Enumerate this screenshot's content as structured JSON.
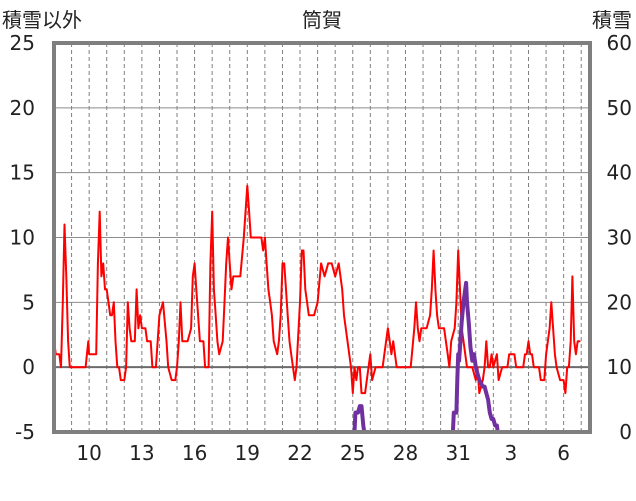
{
  "chart_data": {
    "type": "line",
    "title": "筒賀",
    "left_axis_label": "積雪以外",
    "right_axis_label": "積雪",
    "left_ylim": [
      -5,
      25
    ],
    "left_ticks": [
      "-5",
      "0",
      "5",
      "10",
      "15",
      "20",
      "25"
    ],
    "right_ylim": [
      0,
      60
    ],
    "right_ticks": [
      "0",
      "10",
      "20",
      "30",
      "40",
      "50",
      "60"
    ],
    "x_tick_labels": [
      "10",
      "13",
      "16",
      "19",
      "22",
      "25",
      "28",
      "31",
      "3",
      "6"
    ],
    "x_tick_days": [
      2,
      5,
      8,
      11,
      14,
      17,
      20,
      23,
      26,
      29
    ],
    "x_range_days": [
      0,
      30.5
    ],
    "grid": "vertical dashed daily lines, horizontal solid lines every 5",
    "series": [
      {
        "name": "",
        "axis": "left",
        "color": "#ff0000",
        "points": [
          [
            0,
            2
          ],
          [
            0.1,
            1
          ],
          [
            0.3,
            1
          ],
          [
            0.4,
            0
          ],
          [
            0.5,
            5
          ],
          [
            0.6,
            11
          ],
          [
            0.7,
            7
          ],
          [
            0.8,
            2
          ],
          [
            0.9,
            0
          ],
          [
            1.0,
            0
          ],
          [
            1.5,
            0
          ],
          [
            1.8,
            0
          ],
          [
            1.95,
            2
          ],
          [
            2.0,
            1
          ],
          [
            2.2,
            1
          ],
          [
            2.4,
            1
          ],
          [
            2.5,
            8
          ],
          [
            2.6,
            12
          ],
          [
            2.7,
            7
          ],
          [
            2.8,
            8
          ],
          [
            2.9,
            6
          ],
          [
            3.0,
            6
          ],
          [
            3.1,
            5
          ],
          [
            3.2,
            4
          ],
          [
            3.3,
            4
          ],
          [
            3.4,
            5
          ],
          [
            3.5,
            2
          ],
          [
            3.6,
            0
          ],
          [
            3.7,
            0
          ],
          [
            3.8,
            -1
          ],
          [
            4.0,
            -1
          ],
          [
            4.1,
            0
          ],
          [
            4.2,
            5
          ],
          [
            4.3,
            3
          ],
          [
            4.4,
            2
          ],
          [
            4.6,
            2
          ],
          [
            4.7,
            6
          ],
          [
            4.8,
            3
          ],
          [
            4.9,
            4
          ],
          [
            5.0,
            3
          ],
          [
            5.2,
            3
          ],
          [
            5.3,
            2
          ],
          [
            5.5,
            2
          ],
          [
            5.6,
            0
          ],
          [
            5.8,
            0
          ],
          [
            6.0,
            4
          ],
          [
            6.2,
            5
          ],
          [
            6.4,
            2
          ],
          [
            6.5,
            0
          ],
          [
            6.7,
            -1
          ],
          [
            6.9,
            -1
          ],
          [
            7.0,
            0
          ],
          [
            7.1,
            2
          ],
          [
            7.2,
            5
          ],
          [
            7.3,
            2
          ],
          [
            7.4,
            2
          ],
          [
            7.6,
            2
          ],
          [
            7.8,
            3
          ],
          [
            7.9,
            7
          ],
          [
            8.0,
            8
          ],
          [
            8.1,
            6
          ],
          [
            8.2,
            4
          ],
          [
            8.3,
            2
          ],
          [
            8.5,
            2
          ],
          [
            8.6,
            0
          ],
          [
            8.8,
            0
          ],
          [
            8.9,
            8
          ],
          [
            9.0,
            12
          ],
          [
            9.1,
            6
          ],
          [
            9.2,
            4
          ],
          [
            9.3,
            2
          ],
          [
            9.4,
            1
          ],
          [
            9.6,
            2
          ],
          [
            9.7,
            5
          ],
          [
            9.8,
            8
          ],
          [
            9.9,
            10
          ],
          [
            10.0,
            8
          ],
          [
            10.1,
            6
          ],
          [
            10.2,
            7
          ],
          [
            10.4,
            7
          ],
          [
            10.6,
            7
          ],
          [
            10.8,
            10
          ],
          [
            11.0,
            14
          ],
          [
            11.1,
            12
          ],
          [
            11.2,
            10
          ],
          [
            11.4,
            10
          ],
          [
            11.6,
            10
          ],
          [
            11.8,
            10
          ],
          [
            11.9,
            9
          ],
          [
            12.0,
            10
          ],
          [
            12.1,
            8
          ],
          [
            12.2,
            6
          ],
          [
            12.3,
            5
          ],
          [
            12.4,
            4
          ],
          [
            12.5,
            2
          ],
          [
            12.7,
            1
          ],
          [
            12.8,
            2
          ],
          [
            12.9,
            4
          ],
          [
            13.0,
            8
          ],
          [
            13.1,
            8
          ],
          [
            13.2,
            6
          ],
          [
            13.3,
            4
          ],
          [
            13.4,
            2
          ],
          [
            13.5,
            1
          ],
          [
            13.6,
            0
          ],
          [
            13.7,
            -1
          ],
          [
            13.8,
            0
          ],
          [
            14.0,
            5
          ],
          [
            14.1,
            9
          ],
          [
            14.2,
            9
          ],
          [
            14.3,
            6
          ],
          [
            14.4,
            5
          ],
          [
            14.5,
            4
          ],
          [
            14.6,
            4
          ],
          [
            14.8,
            4
          ],
          [
            15.0,
            5
          ],
          [
            15.2,
            8
          ],
          [
            15.4,
            7
          ],
          [
            15.6,
            8
          ],
          [
            15.8,
            8
          ],
          [
            16.0,
            7
          ],
          [
            16.2,
            8
          ],
          [
            16.4,
            6
          ],
          [
            16.5,
            4
          ],
          [
            16.7,
            2
          ],
          [
            16.9,
            0
          ],
          [
            17.0,
            -2
          ],
          [
            17.1,
            0
          ],
          [
            17.2,
            -1
          ],
          [
            17.3,
            0
          ],
          [
            17.4,
            0
          ],
          [
            17.5,
            -2
          ],
          [
            17.7,
            -2
          ],
          [
            17.8,
            -1
          ],
          [
            18.0,
            1
          ],
          [
            18.1,
            -1
          ],
          [
            18.3,
            0
          ],
          [
            18.5,
            0
          ],
          [
            18.7,
            0
          ],
          [
            18.9,
            2
          ],
          [
            19.0,
            3
          ],
          [
            19.1,
            2
          ],
          [
            19.2,
            1
          ],
          [
            19.3,
            2
          ],
          [
            19.5,
            0
          ],
          [
            19.9,
            0
          ],
          [
            20.3,
            0
          ],
          [
            20.5,
            3
          ],
          [
            20.6,
            5
          ],
          [
            20.7,
            3
          ],
          [
            20.8,
            2
          ],
          [
            20.9,
            3
          ],
          [
            21.0,
            3
          ],
          [
            21.2,
            3
          ],
          [
            21.4,
            4
          ],
          [
            21.5,
            6
          ],
          [
            21.6,
            9
          ],
          [
            21.7,
            6
          ],
          [
            21.8,
            4
          ],
          [
            21.9,
            3
          ],
          [
            22.0,
            3
          ],
          [
            22.2,
            3
          ],
          [
            22.4,
            1
          ],
          [
            22.5,
            0
          ],
          [
            22.6,
            2
          ],
          [
            22.8,
            3
          ],
          [
            22.9,
            5
          ],
          [
            23.0,
            9
          ],
          [
            23.1,
            6
          ],
          [
            23.2,
            3
          ],
          [
            23.3,
            2
          ],
          [
            23.5,
            0
          ],
          [
            23.6,
            0
          ],
          [
            23.8,
            0
          ],
          [
            24.0,
            -1
          ],
          [
            24.1,
            0
          ],
          [
            24.2,
            -2
          ],
          [
            24.4,
            -1
          ],
          [
            24.5,
            0
          ],
          [
            24.6,
            2
          ],
          [
            24.7,
            0
          ],
          [
            24.8,
            0
          ],
          [
            24.9,
            1
          ],
          [
            25.0,
            0
          ],
          [
            25.2,
            1
          ],
          [
            25.3,
            -1
          ],
          [
            25.5,
            0
          ],
          [
            25.6,
            0
          ],
          [
            25.8,
            0
          ],
          [
            25.9,
            1
          ],
          [
            26.0,
            1
          ],
          [
            26.2,
            1
          ],
          [
            26.3,
            0
          ],
          [
            26.4,
            0
          ],
          [
            26.6,
            0
          ],
          [
            26.7,
            0
          ],
          [
            26.8,
            1
          ],
          [
            26.9,
            1
          ],
          [
            27.0,
            2
          ],
          [
            27.1,
            1
          ],
          [
            27.2,
            1
          ],
          [
            27.3,
            0
          ],
          [
            27.5,
            0
          ],
          [
            27.6,
            0
          ],
          [
            27.7,
            -1
          ],
          [
            27.9,
            -1
          ],
          [
            28.0,
            1
          ],
          [
            28.2,
            3
          ],
          [
            28.3,
            5
          ],
          [
            28.4,
            3
          ],
          [
            28.5,
            1
          ],
          [
            28.6,
            0
          ],
          [
            28.8,
            -1
          ],
          [
            29.0,
            -1
          ],
          [
            29.1,
            -2
          ],
          [
            29.2,
            0
          ],
          [
            29.3,
            0
          ],
          [
            29.4,
            2
          ],
          [
            29.5,
            7
          ],
          [
            29.6,
            2
          ],
          [
            29.7,
            1
          ],
          [
            29.8,
            2
          ],
          [
            29.9,
            2
          ]
        ]
      },
      {
        "name": "",
        "axis": "right",
        "color": "#7030a0",
        "points": [
          [
            0,
            0
          ],
          [
            17.0,
            0
          ],
          [
            17.1,
            0
          ],
          [
            17.15,
            3
          ],
          [
            17.3,
            3
          ],
          [
            17.4,
            4
          ],
          [
            17.5,
            4
          ],
          [
            17.6,
            1
          ],
          [
            17.65,
            0
          ],
          [
            22.6,
            0
          ],
          [
            22.7,
            0
          ],
          [
            22.75,
            3
          ],
          [
            22.8,
            3
          ],
          [
            22.9,
            3
          ],
          [
            22.95,
            8
          ],
          [
            23.0,
            12
          ],
          [
            23.05,
            11
          ],
          [
            23.1,
            13
          ],
          [
            23.2,
            17
          ],
          [
            23.3,
            20
          ],
          [
            23.4,
            22
          ],
          [
            23.45,
            23
          ],
          [
            23.5,
            20
          ],
          [
            23.6,
            17
          ],
          [
            23.7,
            13
          ],
          [
            23.8,
            11
          ],
          [
            23.9,
            12
          ],
          [
            24.0,
            10
          ],
          [
            24.1,
            9
          ],
          [
            24.2,
            8
          ],
          [
            24.4,
            7
          ],
          [
            24.5,
            7
          ],
          [
            24.6,
            6
          ],
          [
            24.7,
            5
          ],
          [
            24.8,
            3
          ],
          [
            24.9,
            2
          ],
          [
            25.0,
            2
          ],
          [
            25.1,
            1
          ],
          [
            25.2,
            1
          ],
          [
            25.25,
            0
          ],
          [
            30.5,
            0
          ]
        ]
      }
    ]
  }
}
